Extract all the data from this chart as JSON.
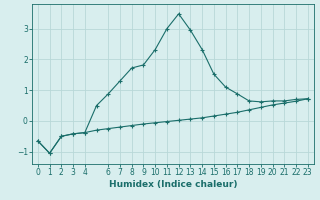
{
  "xlabel": "Humidex (Indice chaleur)",
  "bg_color": "#d8eeee",
  "grid_color": "#b8d8d8",
  "line_color": "#1a6e6a",
  "xlim": [
    -0.5,
    23.5
  ],
  "ylim": [
    -1.4,
    3.8
  ],
  "xticks": [
    0,
    1,
    2,
    3,
    4,
    6,
    7,
    8,
    9,
    10,
    11,
    12,
    13,
    14,
    15,
    16,
    17,
    18,
    19,
    20,
    21,
    22,
    23
  ],
  "yticks": [
    -1,
    0,
    1,
    2,
    3
  ],
  "curve1_x": [
    0,
    1,
    2,
    3,
    4,
    5,
    6,
    7,
    8,
    9,
    10,
    11,
    12,
    13,
    14,
    15,
    16,
    17,
    18,
    19,
    20,
    21,
    22,
    23
  ],
  "curve1_y": [
    -0.65,
    -1.05,
    -0.5,
    -0.42,
    -0.38,
    0.5,
    0.88,
    1.3,
    1.72,
    1.82,
    2.32,
    3.0,
    3.48,
    2.95,
    2.32,
    1.52,
    1.1,
    0.88,
    0.65,
    0.62,
    0.65,
    0.65,
    0.7,
    0.72
  ],
  "curve2_x": [
    0,
    1,
    2,
    3,
    4,
    5,
    6,
    7,
    8,
    9,
    10,
    11,
    12,
    13,
    14,
    15,
    16,
    17,
    18,
    19,
    20,
    21,
    22,
    23
  ],
  "curve2_y": [
    -0.65,
    -1.05,
    -0.5,
    -0.42,
    -0.38,
    -0.3,
    -0.25,
    -0.2,
    -0.15,
    -0.1,
    -0.06,
    -0.02,
    0.02,
    0.06,
    0.1,
    0.16,
    0.22,
    0.28,
    0.36,
    0.44,
    0.52,
    0.58,
    0.64,
    0.72
  ]
}
